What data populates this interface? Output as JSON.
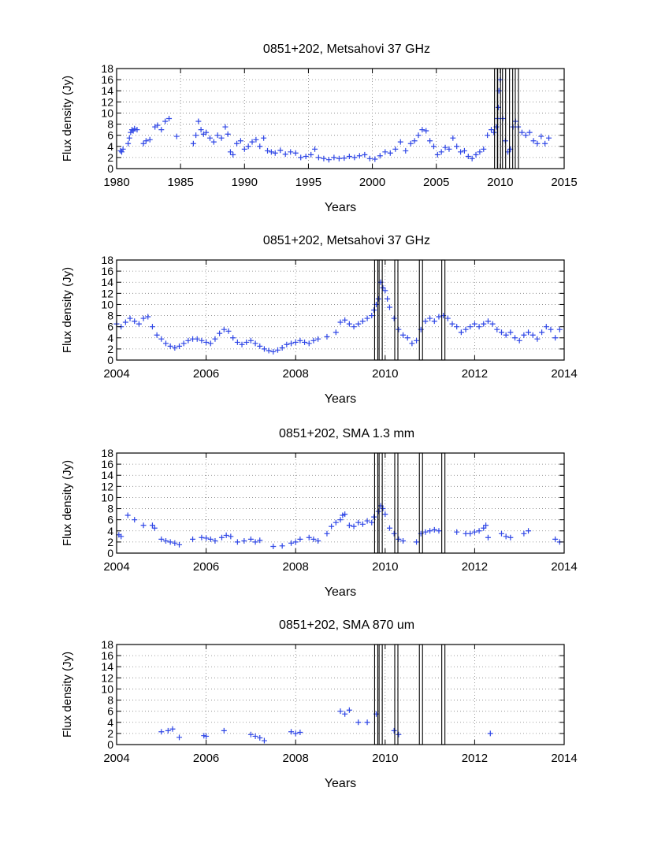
{
  "figure": {
    "description_source": "multi-panel light curves"
  },
  "chart_data": [
    {
      "type": "scatter",
      "title": "0851+202, Metsahovi 37 GHz",
      "xlabel": "Years",
      "ylabel": "Flux density (Jy)",
      "xlim": [
        1980,
        2015
      ],
      "ylim": [
        0,
        18
      ],
      "xticks": [
        1980,
        1985,
        1990,
        1995,
        2000,
        2005,
        2010,
        2015
      ],
      "yticks": [
        0,
        2,
        4,
        6,
        8,
        10,
        12,
        14,
        16,
        18
      ],
      "grid": true,
      "marker_color": "#2e46e6",
      "vlines": [
        2009.68,
        2009.9,
        2010.3,
        2010.85,
        2011.3
      ],
      "series": [
        {
          "name": "37 GHz",
          "x": [
            1980.3,
            1980.4,
            1980.5,
            1980.9,
            1981.0,
            1981.1,
            1981.2,
            1981.3,
            1981.4,
            1981.6,
            1982.1,
            1982.3,
            1982.6,
            1983.0,
            1983.2,
            1983.5,
            1983.8,
            1984.1,
            1984.7,
            1986.0,
            1986.2,
            1986.4,
            1986.6,
            1986.8,
            1987.0,
            1987.3,
            1987.6,
            1987.9,
            1988.2,
            1988.5,
            1988.7,
            1988.9,
            1989.1,
            1989.4,
            1989.7,
            1990.0,
            1990.3,
            1990.6,
            1990.9,
            1991.2,
            1991.5,
            1991.8,
            1992.1,
            1992.4,
            1992.8,
            1993.2,
            1993.6,
            1994.0,
            1994.4,
            1994.8,
            1995.2,
            1995.5,
            1995.8,
            1996.2,
            1996.6,
            1997.0,
            1997.4,
            1997.8,
            1998.2,
            1998.6,
            1999.0,
            1999.4,
            1999.8,
            2000.2,
            2000.6,
            2001.0,
            2001.4,
            2001.8,
            2002.2,
            2002.6,
            2003.0,
            2003.3,
            2003.6,
            2003.9,
            2004.2,
            2004.5,
            2004.8,
            2005.1,
            2005.4,
            2005.7,
            2006.0,
            2006.3,
            2006.6,
            2006.9,
            2007.2,
            2007.5,
            2007.8,
            2008.1,
            2008.4,
            2008.7,
            2009.0,
            2009.3,
            2009.5,
            2009.7,
            2009.8,
            2009.85,
            2009.9,
            2010.0,
            2010.2,
            2010.4,
            2010.6,
            2010.8,
            2011.0,
            2011.2,
            2011.4,
            2011.7,
            2012.0,
            2012.3,
            2012.6,
            2012.9,
            2013.2,
            2013.5,
            2013.8
          ],
          "y": [
            3.2,
            3.0,
            3.5,
            4.5,
            5.5,
            6.5,
            7.0,
            6.8,
            7.2,
            7.0,
            4.5,
            5.0,
            5.2,
            7.5,
            7.8,
            7.0,
            8.5,
            9.0,
            5.8,
            4.5,
            6.0,
            8.5,
            7.0,
            6.2,
            6.5,
            5.5,
            4.8,
            6.0,
            5.5,
            7.5,
            6.2,
            3.0,
            2.5,
            4.5,
            5.0,
            3.5,
            4.0,
            4.8,
            5.2,
            4.0,
            5.5,
            3.2,
            3.0,
            2.8,
            3.3,
            2.6,
            3.0,
            2.8,
            2.0,
            2.2,
            2.5,
            3.5,
            2.0,
            1.8,
            1.6,
            2.0,
            1.8,
            1.9,
            2.2,
            2.0,
            2.3,
            2.5,
            1.8,
            1.7,
            2.3,
            3.0,
            2.8,
            3.5,
            4.8,
            3.2,
            4.5,
            5.0,
            6.0,
            7.0,
            6.8,
            5.0,
            4.0,
            2.5,
            3.0,
            3.8,
            3.5,
            5.5,
            4.0,
            3.0,
            3.2,
            2.2,
            1.8,
            2.5,
            3.0,
            3.5,
            6.0,
            7.0,
            6.5,
            7.5,
            9.0,
            11.0,
            14.0,
            16.0,
            9.0,
            5.0,
            3.0,
            3.5,
            7.5,
            8.5,
            7.5,
            6.5,
            6.0,
            6.5,
            5.0,
            4.5,
            5.8,
            4.5,
            5.5
          ]
        }
      ]
    },
    {
      "type": "scatter",
      "title": "0851+202, Metsahovi 37 GHz",
      "xlabel": "Years",
      "ylabel": "Flux density (Jy)",
      "xlim": [
        2004,
        2014
      ],
      "ylim": [
        0,
        18
      ],
      "xticks": [
        2004,
        2006,
        2008,
        2010,
        2012,
        2014
      ],
      "yticks": [
        0,
        2,
        4,
        6,
        8,
        10,
        12,
        14,
        16,
        18
      ],
      "grid": true,
      "marker_color": "#2e46e6",
      "vlines": [
        2009.8,
        2009.9,
        2010.25,
        2010.8,
        2011.3
      ],
      "series": [
        {
          "name": "37 GHz",
          "x": [
            2004.0,
            2004.1,
            2004.2,
            2004.3,
            2004.4,
            2004.5,
            2004.6,
            2004.7,
            2004.8,
            2004.9,
            2005.0,
            2005.1,
            2005.2,
            2005.3,
            2005.4,
            2005.5,
            2005.6,
            2005.7,
            2005.8,
            2005.9,
            2006.0,
            2006.1,
            2006.2,
            2006.3,
            2006.4,
            2006.5,
            2006.6,
            2006.7,
            2006.8,
            2006.9,
            2007.0,
            2007.1,
            2007.2,
            2007.3,
            2007.4,
            2007.5,
            2007.6,
            2007.7,
            2007.8,
            2007.9,
            2008.0,
            2008.1,
            2008.2,
            2008.3,
            2008.4,
            2008.5,
            2008.7,
            2008.9,
            2009.0,
            2009.1,
            2009.2,
            2009.3,
            2009.4,
            2009.5,
            2009.6,
            2009.7,
            2009.75,
            2009.8,
            2009.85,
            2009.9,
            2009.95,
            2010.0,
            2010.05,
            2010.1,
            2010.2,
            2010.3,
            2010.4,
            2010.5,
            2010.6,
            2010.7,
            2010.8,
            2010.9,
            2011.0,
            2011.1,
            2011.2,
            2011.3,
            2011.4,
            2011.5,
            2011.6,
            2011.7,
            2011.8,
            2011.9,
            2012.0,
            2012.1,
            2012.2,
            2012.3,
            2012.4,
            2012.5,
            2012.6,
            2012.7,
            2012.8,
            2012.9,
            2013.0,
            2013.1,
            2013.2,
            2013.3,
            2013.4,
            2013.5,
            2013.6,
            2013.7,
            2013.8,
            2013.9
          ],
          "y": [
            6.5,
            6.0,
            6.8,
            7.5,
            7.0,
            6.5,
            7.5,
            7.8,
            6.0,
            4.5,
            3.8,
            3.0,
            2.5,
            2.2,
            2.5,
            3.0,
            3.5,
            3.8,
            3.8,
            3.5,
            3.2,
            3.0,
            3.8,
            4.8,
            5.5,
            5.2,
            4.0,
            3.2,
            2.8,
            3.2,
            3.5,
            3.0,
            2.5,
            2.0,
            1.7,
            1.5,
            1.8,
            2.2,
            2.8,
            3.0,
            3.2,
            3.5,
            3.2,
            3.0,
            3.5,
            3.8,
            4.2,
            5.0,
            6.8,
            7.2,
            6.5,
            6.0,
            6.5,
            7.0,
            7.5,
            8.0,
            9.0,
            10.0,
            11.0,
            14.0,
            13.0,
            12.5,
            11.0,
            9.5,
            7.5,
            5.5,
            4.5,
            4.0,
            3.0,
            3.5,
            5.5,
            7.0,
            7.5,
            7.0,
            7.8,
            8.0,
            7.5,
            6.5,
            6.0,
            5.0,
            5.5,
            6.0,
            6.5,
            6.0,
            6.5,
            7.0,
            6.5,
            5.5,
            5.0,
            4.5,
            5.0,
            4.0,
            3.5,
            4.5,
            5.0,
            4.5,
            3.8,
            5.0,
            6.0,
            5.5,
            4.0,
            5.5
          ]
        }
      ]
    },
    {
      "type": "scatter",
      "title": "0851+202, SMA 1.3 mm",
      "xlabel": "Years",
      "ylabel": "Flux density (Jy)",
      "xlim": [
        2004,
        2014
      ],
      "ylim": [
        0,
        18
      ],
      "xticks": [
        2004,
        2006,
        2008,
        2010,
        2012,
        2014
      ],
      "yticks": [
        0,
        2,
        4,
        6,
        8,
        10,
        12,
        14,
        16,
        18
      ],
      "grid": true,
      "marker_color": "#2e46e6",
      "vlines": [
        2009.8,
        2009.9,
        2010.25,
        2010.8,
        2011.3
      ],
      "series": [
        {
          "name": "1.3 mm",
          "x": [
            2004.05,
            2004.1,
            2004.25,
            2004.4,
            2004.6,
            2004.8,
            2004.85,
            2005.0,
            2005.1,
            2005.2,
            2005.3,
            2005.4,
            2005.7,
            2005.9,
            2006.0,
            2006.1,
            2006.2,
            2006.35,
            2006.45,
            2006.55,
            2006.7,
            2006.85,
            2007.0,
            2007.1,
            2007.2,
            2007.5,
            2007.7,
            2007.9,
            2008.0,
            2008.1,
            2008.3,
            2008.4,
            2008.5,
            2008.7,
            2008.8,
            2008.9,
            2009.0,
            2009.05,
            2009.1,
            2009.2,
            2009.3,
            2009.4,
            2009.5,
            2009.6,
            2009.7,
            2009.75,
            2009.85,
            2009.9,
            2009.95,
            2010.0,
            2010.1,
            2010.2,
            2010.3,
            2010.4,
            2010.7,
            2010.8,
            2010.9,
            2011.0,
            2011.1,
            2011.2,
            2011.6,
            2011.8,
            2011.9,
            2012.0,
            2012.1,
            2012.2,
            2012.25,
            2012.3,
            2012.6,
            2012.7,
            2012.8,
            2013.1,
            2013.2,
            2013.8,
            2013.9
          ],
          "y": [
            3.3,
            3.0,
            6.8,
            6.0,
            5.0,
            5.0,
            4.5,
            2.5,
            2.2,
            2.0,
            1.8,
            1.5,
            2.5,
            2.8,
            2.7,
            2.5,
            2.2,
            2.8,
            3.2,
            3.0,
            2.0,
            2.2,
            2.5,
            2.0,
            2.3,
            1.2,
            1.3,
            1.8,
            2.0,
            2.5,
            2.8,
            2.5,
            2.2,
            3.5,
            4.8,
            5.5,
            6.0,
            6.8,
            7.0,
            5.0,
            4.8,
            5.5,
            5.2,
            5.8,
            5.5,
            6.5,
            7.5,
            8.5,
            8.0,
            7.0,
            4.5,
            3.5,
            2.5,
            2.2,
            2.0,
            3.5,
            3.8,
            4.0,
            4.2,
            4.0,
            3.8,
            3.5,
            3.5,
            3.8,
            4.0,
            4.5,
            5.0,
            2.8,
            3.5,
            3.0,
            2.8,
            3.5,
            4.0,
            2.5,
            2.0
          ]
        }
      ]
    },
    {
      "type": "scatter",
      "title": "0851+202, SMA 870 um",
      "xlabel": "Years",
      "ylabel": "Flux density (Jy)",
      "xlim": [
        2004,
        2014
      ],
      "ylim": [
        0,
        18
      ],
      "xticks": [
        2004,
        2006,
        2008,
        2010,
        2012,
        2014
      ],
      "yticks": [
        0,
        2,
        4,
        6,
        8,
        10,
        12,
        14,
        16,
        18
      ],
      "grid": true,
      "marker_color": "#2e46e6",
      "vlines": [
        2009.8,
        2009.9,
        2010.25,
        2010.8,
        2011.3
      ],
      "series": [
        {
          "name": "870 um",
          "x": [
            2005.0,
            2005.15,
            2005.25,
            2005.4,
            2005.95,
            2006.0,
            2006.4,
            2007.0,
            2007.1,
            2007.2,
            2007.3,
            2007.9,
            2008.0,
            2008.1,
            2009.0,
            2009.1,
            2009.2,
            2009.4,
            2009.6,
            2009.8,
            2010.2,
            2010.3,
            2012.35
          ],
          "y": [
            2.3,
            2.5,
            2.8,
            1.3,
            1.6,
            1.5,
            2.5,
            1.8,
            1.5,
            1.2,
            0.7,
            2.3,
            2.0,
            2.2,
            6.0,
            5.5,
            6.2,
            4.0,
            4.0,
            5.5,
            2.5,
            1.8,
            2.0
          ]
        }
      ]
    }
  ]
}
